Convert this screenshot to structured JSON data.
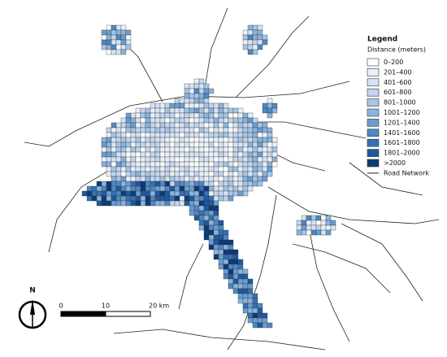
{
  "legend": {
    "title": "Legend",
    "subtitle": "Distance (meters)",
    "classes": [
      {
        "label": "0–200",
        "color": "#ffffff"
      },
      {
        "label": "201–400",
        "color": "#eaf1fa"
      },
      {
        "label": "401–600",
        "color": "#d6e4f4"
      },
      {
        "label": "601–800",
        "color": "#c2d6ee"
      },
      {
        "label": "801–1000",
        "color": "#a6c6e6"
      },
      {
        "label": "1001–1200",
        "color": "#8ab4dd"
      },
      {
        "label": "1201–1400",
        "color": "#6a9ed2"
      },
      {
        "label": "1401–1600",
        "color": "#4f88c4"
      },
      {
        "label": "1601–1800",
        "color": "#3671b4"
      },
      {
        "label": "1801–2000",
        "color": "#1f5aa0"
      },
      {
        ">label": null,
        "label": ">2000",
        "color": "#0e3a78"
      }
    ],
    "road_label": "Road Network"
  },
  "north_arrow": {
    "label": "N"
  },
  "scale_bar": {
    "labels": [
      "0",
      "10",
      "20 km"
    ]
  }
}
